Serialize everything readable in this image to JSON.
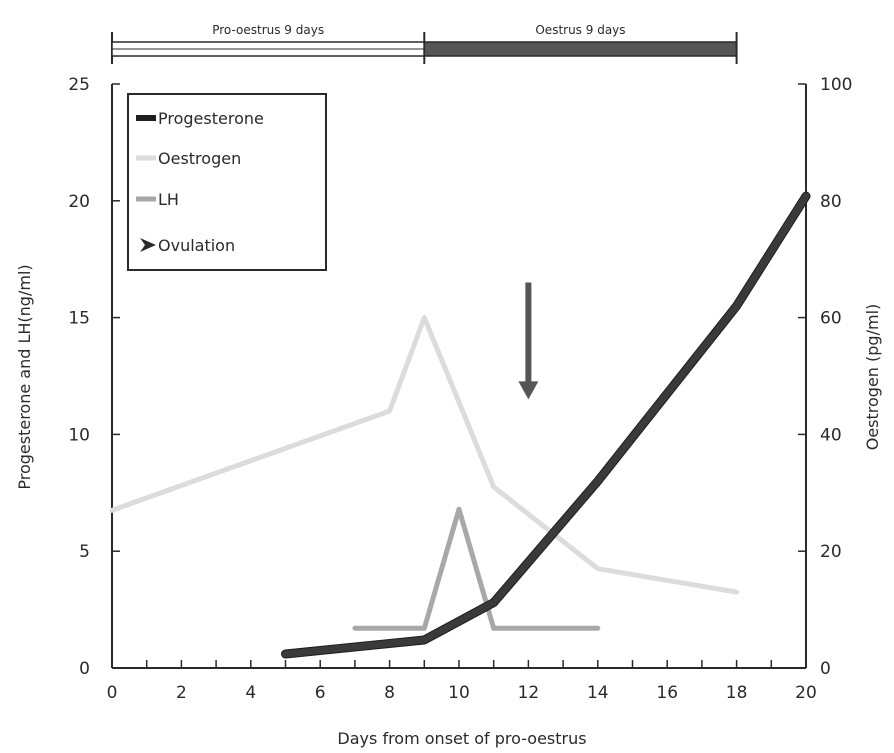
{
  "chart_data": {
    "type": "line",
    "xlabel": "Days from onset of pro-oestrus",
    "ylabel_left": "Progesterone and LH(ng/ml)",
    "ylabel_right": "Oestrogen (pg/ml)",
    "xlim": [
      0,
      20
    ],
    "ylim_left": [
      0,
      25
    ],
    "ylim_right": [
      0,
      100
    ],
    "x_ticks": [
      0,
      2,
      4,
      6,
      8,
      10,
      12,
      14,
      16,
      18,
      20
    ],
    "y_ticks_left": [
      0,
      5,
      10,
      15,
      20,
      25
    ],
    "y_ticks_right": [
      0,
      20,
      40,
      60,
      80,
      100
    ],
    "grid": false,
    "legend_position": "top-left",
    "phases": [
      {
        "label": "Pro-oestrus 9 days",
        "start": 0,
        "end": 9,
        "fill": "#ffffff"
      },
      {
        "label": "Oestrus 9 days",
        "start": 9,
        "end": 18,
        "fill": "#555555"
      }
    ],
    "series": [
      {
        "name": "Progesterone",
        "axis": "left",
        "color": "#3a3a3a",
        "x": [
          5,
          9,
          11,
          14,
          18,
          20
        ],
        "y": [
          0.6,
          1.2,
          2.8,
          8.0,
          15.5,
          20.2
        ]
      },
      {
        "name": "Oestrogen",
        "axis": "right",
        "color": "#dcdcdc",
        "x": [
          0,
          8,
          9,
          11,
          14,
          18
        ],
        "y": [
          27,
          44,
          60,
          31,
          17,
          13
        ]
      },
      {
        "name": "LH",
        "axis": "left",
        "color": "#a8a8a8",
        "x": [
          7,
          9,
          10,
          11,
          14
        ],
        "y": [
          1.7,
          1.7,
          6.8,
          1.7,
          1.7
        ]
      }
    ],
    "ovulation": {
      "label": "Ovulation",
      "day": 12,
      "y_top": 16.5,
      "y_bottom": 11.5,
      "color": "#555555"
    }
  }
}
